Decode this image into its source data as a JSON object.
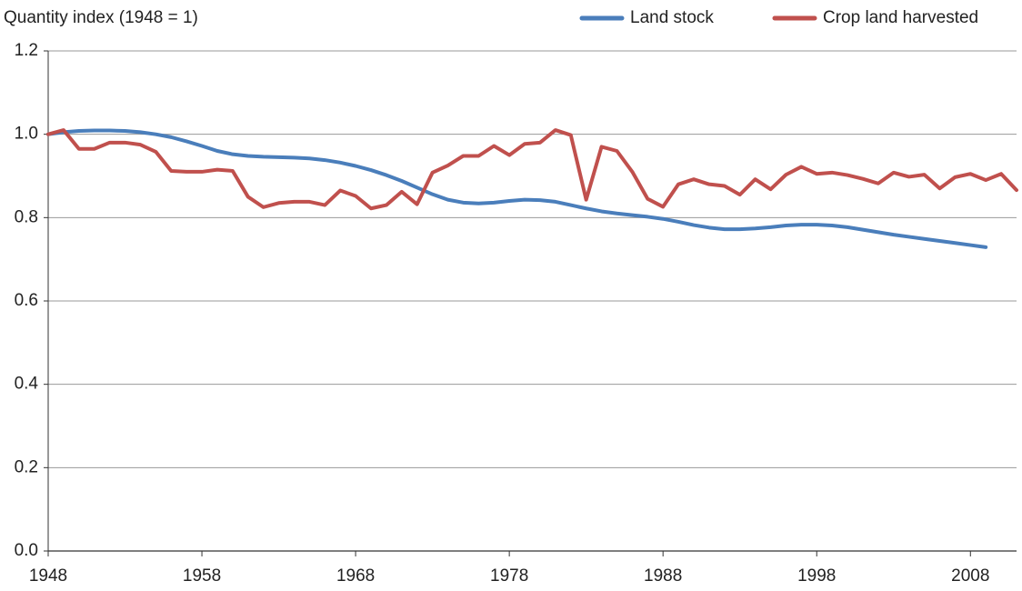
{
  "chart_data": {
    "type": "line",
    "y_label": "Quantity index (1948 = 1)",
    "x": [
      1948,
      1949,
      1950,
      1951,
      1952,
      1953,
      1954,
      1955,
      1956,
      1957,
      1958,
      1959,
      1960,
      1961,
      1962,
      1963,
      1964,
      1965,
      1966,
      1967,
      1968,
      1969,
      1970,
      1971,
      1972,
      1973,
      1974,
      1975,
      1976,
      1977,
      1978,
      1979,
      1980,
      1981,
      1982,
      1983,
      1984,
      1985,
      1986,
      1987,
      1988,
      1989,
      1990,
      1991,
      1992,
      1993,
      1994,
      1995,
      1996,
      1997,
      1998,
      1999,
      2000,
      2001,
      2002,
      2003,
      2004,
      2005,
      2006,
      2007,
      2008,
      2009,
      2010,
      2011
    ],
    "series": [
      {
        "name": "Land stock",
        "color": "#4a7ebb",
        "values": [
          1.0,
          1.005,
          1.008,
          1.009,
          1.009,
          1.008,
          1.005,
          1.0,
          0.993,
          0.983,
          0.972,
          0.96,
          0.952,
          0.948,
          0.946,
          0.945,
          0.944,
          0.942,
          0.938,
          0.932,
          0.924,
          0.914,
          0.902,
          0.888,
          0.872,
          0.856,
          0.843,
          0.836,
          0.834,
          0.836,
          0.84,
          0.843,
          0.842,
          0.838,
          0.83,
          0.822,
          0.815,
          0.81,
          0.806,
          0.802,
          0.797,
          0.79,
          0.782,
          0.776,
          0.772,
          0.772,
          0.774,
          0.777,
          0.781,
          0.783,
          0.783,
          0.781,
          0.777,
          0.771,
          0.765,
          0.759,
          0.754,
          0.749,
          0.744,
          0.739,
          0.734,
          0.729,
          null,
          null
        ]
      },
      {
        "name": "Crop land harvested",
        "color": "#c0504d",
        "values": [
          1.0,
          1.01,
          0.965,
          0.965,
          0.98,
          0.98,
          0.975,
          0.958,
          0.912,
          0.91,
          0.91,
          0.915,
          0.912,
          0.85,
          0.825,
          0.835,
          0.838,
          0.838,
          0.83,
          0.865,
          0.852,
          0.822,
          0.83,
          0.862,
          0.832,
          0.908,
          0.925,
          0.948,
          0.948,
          0.972,
          0.95,
          0.977,
          0.98,
          1.01,
          0.998,
          0.843,
          0.97,
          0.96,
          0.91,
          0.845,
          0.826,
          0.88,
          0.892,
          0.88,
          0.876,
          0.855,
          0.892,
          0.868,
          0.903,
          0.922,
          0.905,
          0.908,
          0.902,
          0.893,
          0.882,
          0.908,
          0.898,
          0.903,
          0.87,
          0.897,
          0.905,
          0.89,
          0.905,
          0.866
        ]
      }
    ],
    "xlim": [
      1948,
      2011
    ],
    "xticks": [
      1948,
      1958,
      1968,
      1978,
      1988,
      1998,
      2008
    ],
    "ylim": [
      0,
      1.2
    ],
    "yticks": [
      {
        "value": 0,
        "label": "0.0"
      },
      0.2,
      0.4,
      0.6,
      0.8,
      {
        "value": 1,
        "label": "1.0"
      },
      1.2
    ],
    "grid": true,
    "legend": "top-right"
  }
}
